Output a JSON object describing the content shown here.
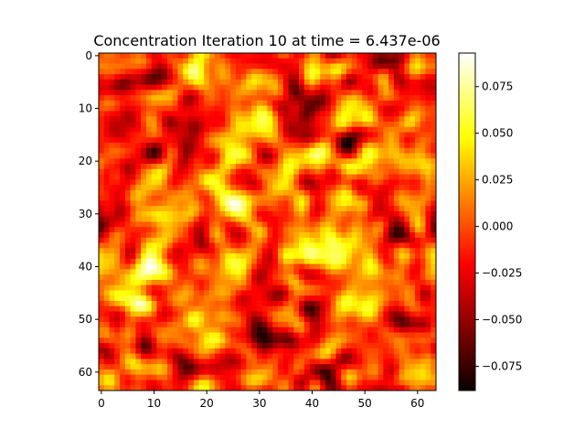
{
  "chart_data": {
    "type": "heatmap",
    "title": "Concentration Iteration 10 at time = 6.437e-06",
    "xlabel": "",
    "ylabel": "",
    "grid_size": [
      64,
      64
    ],
    "x_ticks": [
      0,
      10,
      20,
      30,
      40,
      50,
      60
    ],
    "y_ticks": [
      0,
      10,
      20,
      30,
      40,
      50,
      60
    ],
    "x_tick_labels": [
      "0",
      "10",
      "20",
      "30",
      "40",
      "50",
      "60"
    ],
    "y_tick_labels": [
      "0",
      "10",
      "20",
      "30",
      "40",
      "50",
      "60"
    ],
    "xlim": [
      -0.5,
      63.5
    ],
    "ylim": [
      63.5,
      -0.5
    ],
    "grid": false,
    "colormap": "hot",
    "vmin": -0.088,
    "vmax": 0.093,
    "colorbar_ticks": [
      0.075,
      0.05,
      0.025,
      0.0,
      -0.025,
      -0.05,
      -0.075
    ],
    "colorbar_tick_labels": [
      "0.075",
      "0.050",
      "0.025",
      "0.000",
      "−0.025",
      "−0.050",
      "−0.075"
    ],
    "seed": 10
  }
}
